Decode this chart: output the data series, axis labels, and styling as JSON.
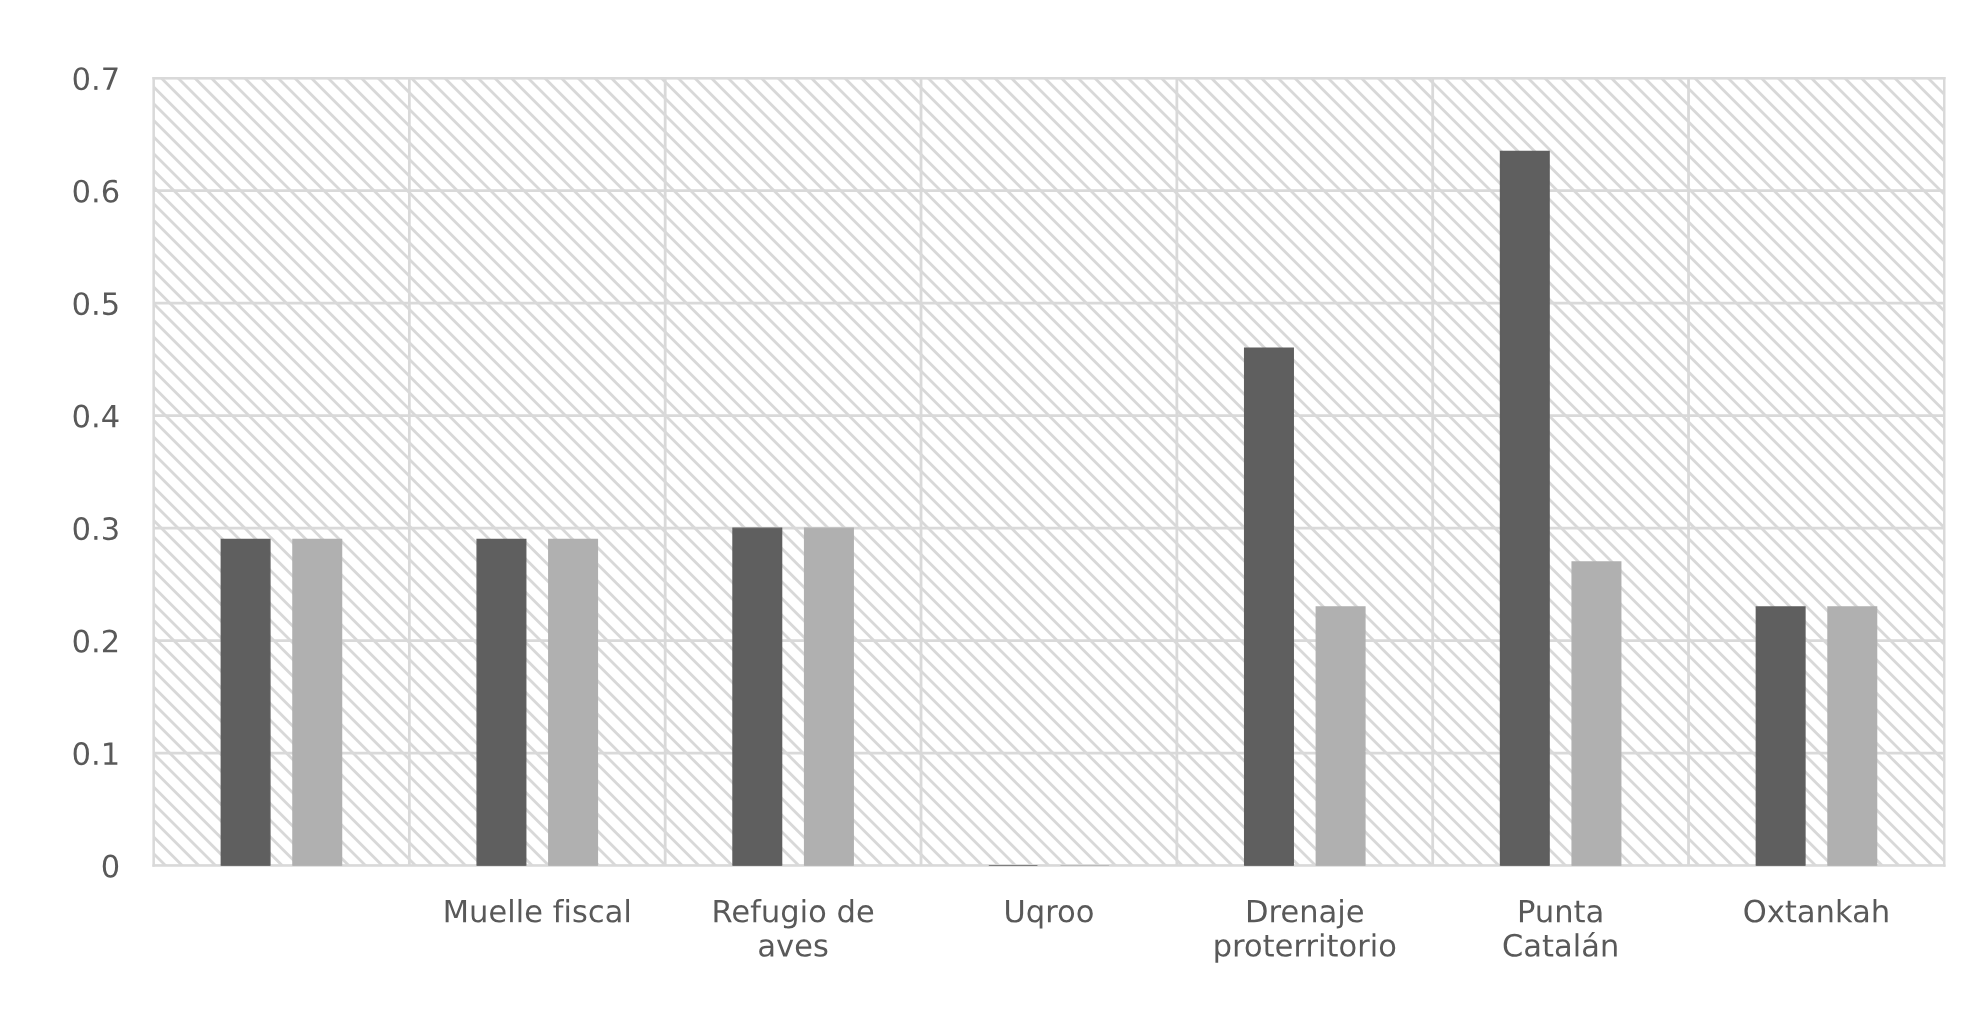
{
  "chart_data": {
    "type": "bar",
    "categories": [
      null,
      "Muelle fiscal",
      "Refugio de\naves",
      "Uqroo",
      "Drenaje\nproterritorio",
      "Punta\nCatalán",
      "Oxtankah"
    ],
    "series": [
      {
        "color": "#5f5f5f",
        "values": [
          0.29,
          0.29,
          0.3,
          0,
          0.46,
          0.635,
          0.23
        ]
      },
      {
        "color": "#b0b0b0",
        "values": [
          0.29,
          0.29,
          0.3,
          0,
          0.23,
          0.27,
          0.23
        ]
      }
    ],
    "ylim": [
      0,
      0.7
    ],
    "yticks": [
      {
        "value": 0,
        "label": "0"
      },
      0.1,
      0.2,
      0.3,
      0.4,
      0.5,
      0.6,
      0.7
    ],
    "grid": true
  }
}
